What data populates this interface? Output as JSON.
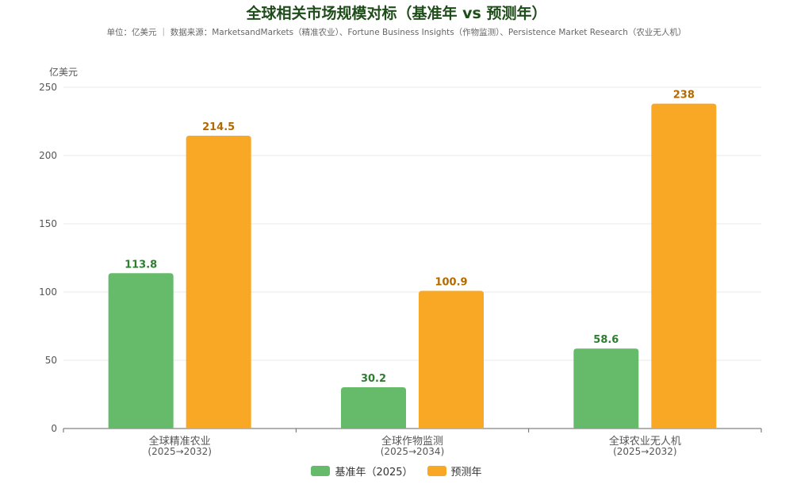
{
  "chart_data": {
    "type": "bar",
    "title": "全球相关市场规模对标（基准年 vs 预测年）",
    "subtitle": "单位：亿美元 ｜ 数据来源：MarketsandMarkets（精准农业）、Fortune Business Insights（作物监测）、Persistence Market Research（农业无人机）",
    "ylabel": "亿美元",
    "xlabel": "",
    "ylim": [
      0,
      250
    ],
    "yticks": [
      0,
      50,
      100,
      150,
      200,
      250
    ],
    "grid": true,
    "legend_position": "bottom",
    "categories": [
      {
        "name": "全球精准农业",
        "period": "(2025→2032)"
      },
      {
        "name": "全球作物监测",
        "period": "(2025→2034)"
      },
      {
        "name": "全球农业无人机",
        "period": "(2025→2032)"
      }
    ],
    "series": [
      {
        "name": "基准年（2025）",
        "color": "#66bb6a",
        "label_color": "#2e7d32",
        "values": [
          113.8,
          30.2,
          58.6
        ]
      },
      {
        "name": "预测年",
        "color": "#f9a825",
        "label_color": "#b26a00",
        "values": [
          214.5,
          100.9,
          238
        ]
      }
    ]
  }
}
